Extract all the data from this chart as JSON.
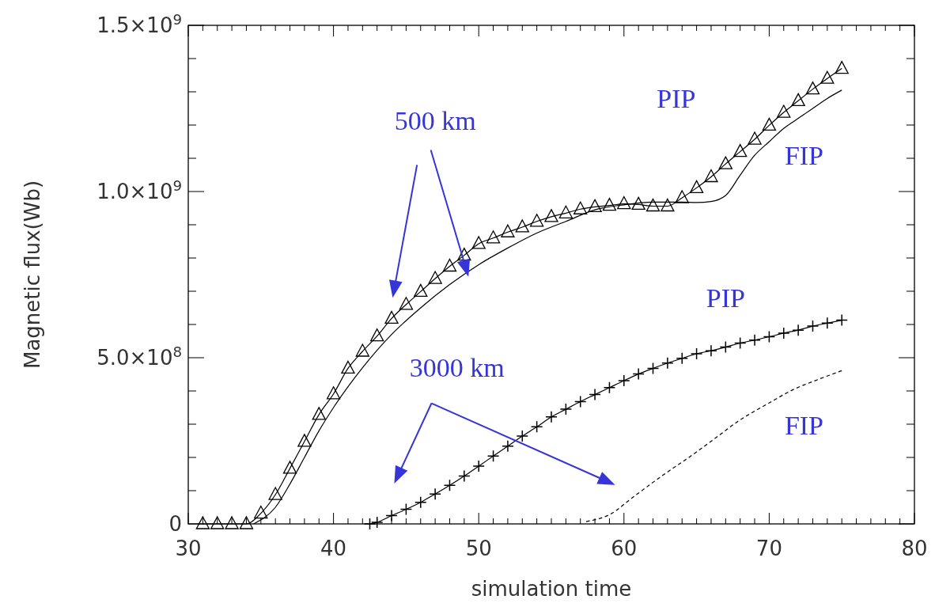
{
  "chart_data": {
    "type": "line",
    "xlabel": "simulation time",
    "ylabel": "Magnetic flux(Wb)",
    "xlim": [
      30,
      80
    ],
    "xticks": [
      30,
      40,
      50,
      60,
      70,
      80
    ],
    "ylim": [
      0,
      1500000000
    ],
    "yticks": [
      {
        "value": 0,
        "label": "0"
      },
      {
        "value": 500000000,
        "label": "5.0×10$^{8}$"
      },
      {
        "value": 1000000000,
        "label": "1.0×10$^{9}$"
      },
      {
        "value": 1500000000,
        "label": "1.5×10$^{9}$"
      }
    ],
    "grid": false,
    "annotations": [
      "500 km",
      "3000 km",
      "PIP",
      "FIP",
      "PIP",
      "FIP"
    ],
    "series": [
      {
        "color": "#000000",
        "marker": "triangle",
        "line_style": "solid",
        "x": [
          31,
          32,
          33,
          34,
          35,
          36,
          37,
          38,
          39,
          40,
          41,
          42,
          43,
          44,
          45,
          46,
          47,
          48,
          49,
          50,
          51,
          52,
          53,
          54,
          55,
          56,
          57,
          58,
          59,
          60,
          61,
          62,
          63,
          64,
          65,
          66,
          67,
          68,
          69,
          70,
          71,
          72,
          73,
          74,
          75
        ],
        "values": [
          0,
          0,
          0,
          0,
          32000000,
          88000000,
          167000000,
          248000000,
          329000000,
          391000000,
          468000000,
          519000000,
          565000000,
          618000000,
          660000000,
          699000000,
          738000000,
          775000000,
          808000000,
          843000000,
          860000000,
          878000000,
          893000000,
          910000000,
          924000000,
          935000000,
          947000000,
          954000000,
          958000000,
          963000000,
          961000000,
          956000000,
          956000000,
          981000000,
          1011000000,
          1044000000,
          1083000000,
          1120000000,
          1157000000,
          1199000000,
          1238000000,
          1273000000,
          1308000000,
          1340000000,
          1370000000
        ]
      },
      {
        "color": "#000000",
        "marker": "none",
        "line_style": "solid",
        "x": [
          34.5,
          36,
          37,
          38,
          39,
          40,
          42,
          44,
          46,
          48,
          50,
          52,
          54,
          56,
          58,
          60,
          62,
          64,
          65,
          66,
          67,
          68,
          69,
          70,
          71,
          72,
          73,
          74,
          75
        ],
        "values": [
          0,
          50000000,
          120000000,
          200000000,
          280000000,
          350000000,
          470000000,
          570000000,
          650000000,
          720000000,
          780000000,
          830000000,
          875000000,
          910000000,
          945000000,
          960000000,
          968000000,
          968000000,
          967000000,
          970000000,
          988000000,
          1049000000,
          1109000000,
          1150000000,
          1190000000,
          1220000000,
          1250000000,
          1280000000,
          1305000000
        ]
      },
      {
        "color": "#000000",
        "marker": "cross",
        "line_style": "solid",
        "x": [
          42.5,
          43,
          44,
          45,
          46,
          47,
          48,
          49,
          50,
          51,
          52,
          53,
          54,
          55,
          56,
          57,
          58,
          59,
          60,
          61,
          62,
          63,
          64,
          65,
          66,
          67,
          68,
          69,
          70,
          71,
          72,
          73,
          74,
          75
        ],
        "values": [
          0,
          5000000,
          25000000,
          44000000,
          65000000,
          90000000,
          116000000,
          144000000,
          174000000,
          204000000,
          234000000,
          264000000,
          292000000,
          322000000,
          345000000,
          368000000,
          389000000,
          410000000,
          431000000,
          451000000,
          468000000,
          484000000,
          498000000,
          512000000,
          521000000,
          532000000,
          544000000,
          553000000,
          563000000,
          574000000,
          583000000,
          595000000,
          604000000,
          613000000
        ]
      },
      {
        "color": "#000000",
        "marker": "none",
        "line_style": "dashed",
        "x": [
          57.4,
          59,
          60.7,
          62.6,
          64.6,
          66.2,
          67.9,
          69.8,
          71.7,
          73.4,
          75
        ],
        "values": [
          7000000,
          28000000,
          83000000,
          144000000,
          204000000,
          255000000,
          310000000,
          359000000,
          405000000,
          435000000,
          461000000
        ]
      }
    ]
  }
}
